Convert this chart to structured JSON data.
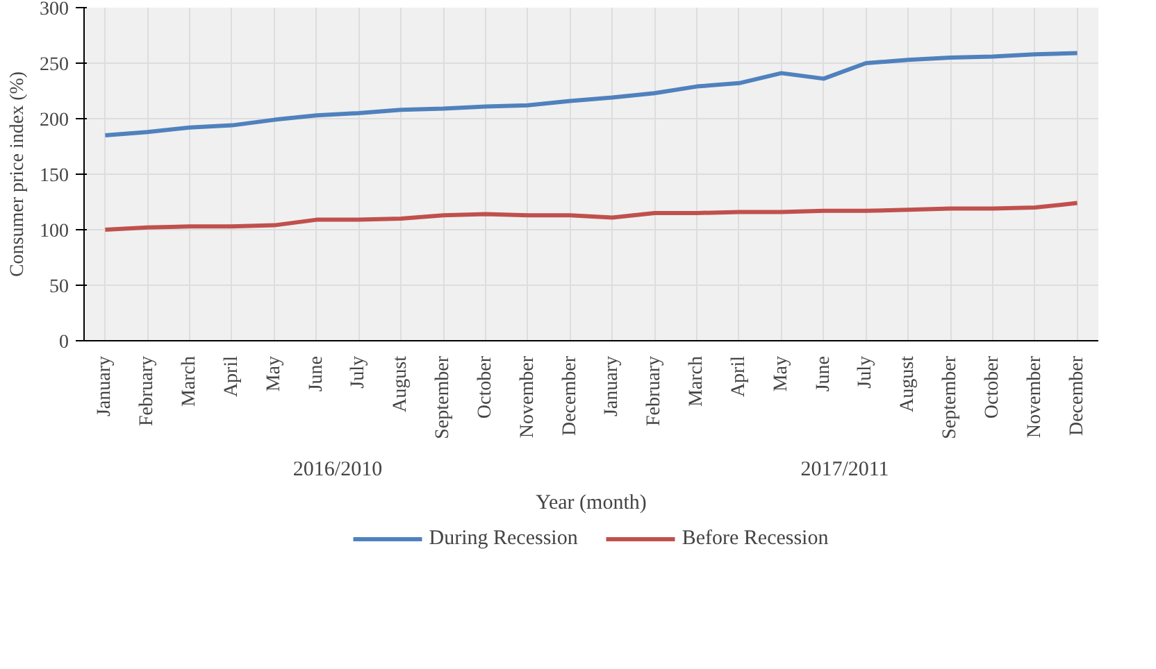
{
  "chart_data": {
    "type": "line",
    "xlabel": "Year (month)",
    "ylabel": "Consumer price index (%)",
    "categories": [
      "January",
      "February",
      "March",
      "April",
      "May",
      "June",
      "July",
      "August",
      "September",
      "October",
      "November",
      "December",
      "January",
      "February",
      "March",
      "April",
      "May",
      "June",
      "July",
      "August",
      "September",
      "October",
      "November",
      "December"
    ],
    "series": [
      {
        "name": "During Recession",
        "color": "#4f81bd",
        "values": [
          185,
          188,
          192,
          194,
          199,
          203,
          205,
          208,
          209,
          211,
          212,
          216,
          219,
          223,
          229,
          232,
          241,
          236,
          250,
          253,
          255,
          256,
          258,
          259
        ]
      },
      {
        "name": "Before Recession",
        "color": "#c0504d",
        "values": [
          100,
          102,
          103,
          103,
          104,
          109,
          109,
          110,
          113,
          114,
          113,
          113,
          111,
          115,
          115,
          116,
          116,
          117,
          117,
          118,
          119,
          119,
          120,
          124
        ]
      }
    ],
    "annotations": [
      "2016/2010",
      "2017/2011"
    ],
    "ylim": [
      0,
      300
    ],
    "yticks": [
      0,
      50,
      100,
      150,
      200,
      250,
      300
    ],
    "grid": true,
    "legend": "bottom",
    "marker": "none",
    "line_style": "solid"
  }
}
